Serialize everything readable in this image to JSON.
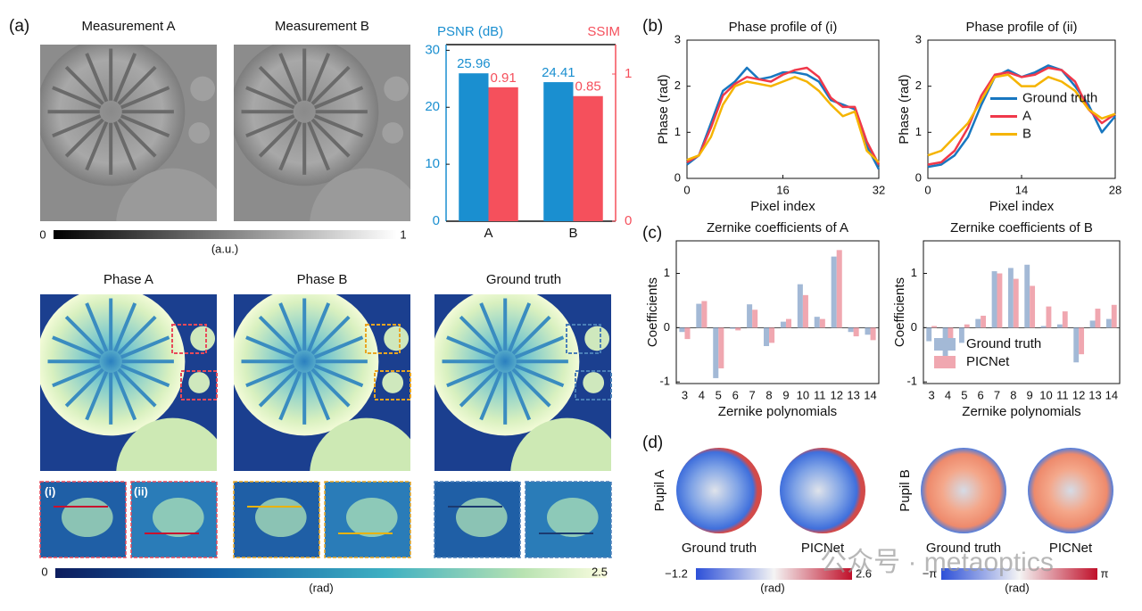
{
  "figure": {
    "panel_labels": [
      "(a)",
      "(b)",
      "(c)",
      "(d)"
    ],
    "measurement_titles": [
      "Measurement A",
      "Measurement B"
    ],
    "gray_colorbar": {
      "min": 0,
      "max": 1,
      "unit": "(a.u.)"
    },
    "phase_titles": [
      "Phase A",
      "Phase B",
      "Ground truth"
    ],
    "inset_labels": [
      "(i)",
      "(ii)"
    ],
    "phase_colorbar": {
      "min": 0,
      "max": 2.5,
      "unit": "(rad)"
    },
    "pupil_labels": [
      "Pupil A",
      "Pupil B"
    ],
    "pupil_titles": [
      "Ground truth",
      "PICNet",
      "Ground truth",
      "PICNet"
    ],
    "pupil_colorbar_a": {
      "min": {
        "value": -1.2,
        "label": "−1.2"
      },
      "max": 2.6,
      "unit": "(rad)"
    },
    "pupil_colorbar_b": {
      "min": "−π",
      "max": "π",
      "unit": "(rad)"
    },
    "watermark": "公众号 · metaoptics"
  },
  "chart_data": [
    {
      "type": "bar",
      "categories": [
        "A",
        "B"
      ],
      "data_labels": true,
      "series": [
        {
          "name": "PSNR (dB)",
          "color": "#1a8fd0",
          "values": [
            25.96,
            24.41
          ]
        },
        {
          "name": "SSIM",
          "color": "#f5505c",
          "axis": "y2",
          "values": [
            0.91,
            0.85
          ]
        }
      ],
      "ylim": [
        0,
        31
      ],
      "yticks": [
        0,
        10,
        20,
        30
      ],
      "y2lim": [
        0,
        1.2
      ],
      "y2ticks": [
        0,
        1
      ]
    },
    {
      "type": "line",
      "title": "Phase profile of (i)",
      "x_label": "Pixel index",
      "y_label": "Phase (rad)",
      "x": [
        0,
        2,
        4,
        6,
        8,
        10,
        12,
        14,
        16,
        18,
        20,
        22,
        24,
        26,
        28,
        30,
        32
      ],
      "xlim": [
        0,
        32
      ],
      "xticks": [
        0,
        16,
        32
      ],
      "ylim": [
        0,
        3
      ],
      "yticks": [
        0,
        1,
        2,
        3
      ],
      "series": [
        {
          "name": "Ground truth",
          "color": "#1877c0",
          "values": [
            0.3,
            0.5,
            1.2,
            1.9,
            2.1,
            2.4,
            2.15,
            2.2,
            2.3,
            2.3,
            2.25,
            2.1,
            1.7,
            1.6,
            1.5,
            0.7,
            0.2
          ]
        },
        {
          "name": "A",
          "color": "#f0384a",
          "values": [
            0.35,
            0.5,
            1.1,
            1.8,
            2.05,
            2.2,
            2.15,
            2.1,
            2.25,
            2.35,
            2.4,
            2.2,
            1.75,
            1.55,
            1.55,
            0.8,
            0.3
          ]
        },
        {
          "name": "B",
          "color": "#f5b400",
          "values": [
            0.4,
            0.5,
            0.9,
            1.6,
            2.0,
            2.1,
            2.05,
            2.0,
            2.1,
            2.2,
            2.1,
            1.9,
            1.6,
            1.35,
            1.45,
            0.6,
            0.35
          ]
        }
      ]
    },
    {
      "type": "line",
      "title": "Phase profile of (ii)",
      "x_label": "Pixel index",
      "y_label": "Phase (rad)",
      "x": [
        0,
        2,
        4,
        6,
        8,
        10,
        12,
        14,
        16,
        18,
        20,
        22,
        24,
        26,
        28
      ],
      "xlim": [
        0,
        28
      ],
      "xticks": [
        0,
        14,
        28
      ],
      "ylim": [
        0,
        3
      ],
      "yticks": [
        0,
        1,
        2,
        3
      ],
      "legend": "center right",
      "series": [
        {
          "name": "Ground truth",
          "color": "#1877c0",
          "values": [
            0.25,
            0.3,
            0.5,
            0.9,
            1.6,
            2.2,
            2.35,
            2.2,
            2.3,
            2.45,
            2.35,
            2.0,
            1.6,
            1.0,
            1.35
          ]
        },
        {
          "name": "A",
          "color": "#f0384a",
          "values": [
            0.3,
            0.35,
            0.6,
            1.1,
            1.8,
            2.25,
            2.3,
            2.2,
            2.25,
            2.4,
            2.35,
            2.1,
            1.5,
            1.2,
            1.4
          ]
        },
        {
          "name": "B",
          "color": "#f5b400",
          "values": [
            0.5,
            0.6,
            0.9,
            1.2,
            1.7,
            2.2,
            2.25,
            2.0,
            2.0,
            2.2,
            2.1,
            1.9,
            1.5,
            1.3,
            1.4
          ]
        }
      ]
    },
    {
      "type": "bar",
      "title": "Zernike coefficients of A",
      "x_label": "Zernike polynomials",
      "y_label": "Coefficients",
      "categories": [
        "3",
        "4",
        "5",
        "6",
        "7",
        "8",
        "9",
        "10",
        "11",
        "12",
        "13",
        "14"
      ],
      "ylim": [
        -1.03,
        1.6
      ],
      "yticks": [
        -1,
        0,
        1
      ],
      "series": [
        {
          "name": "Ground truth",
          "color": "#a3b9d6",
          "values": [
            -0.08,
            0.44,
            -0.93,
            -0.02,
            0.43,
            -0.34,
            0.11,
            0.8,
            0.2,
            1.31,
            -0.08,
            -0.13
          ]
        },
        {
          "name": "PICNet",
          "color": "#f0a7b0",
          "values": [
            -0.21,
            0.49,
            -0.75,
            -0.05,
            0.33,
            -0.28,
            0.16,
            0.6,
            0.16,
            1.43,
            -0.16,
            -0.23
          ]
        }
      ]
    },
    {
      "type": "bar",
      "title": "Zernike coefficients of B",
      "x_label": "Zernike polynomials",
      "y_label": "Coefficients",
      "categories": [
        "3",
        "4",
        "5",
        "6",
        "7",
        "8",
        "9",
        "10",
        "11",
        "12",
        "13",
        "14"
      ],
      "ylim": [
        -1.03,
        1.6
      ],
      "yticks": [
        -1,
        0,
        1
      ],
      "legend": "lower left",
      "series": [
        {
          "name": "Ground truth",
          "color": "#a3b9d6",
          "values": [
            -0.25,
            -0.72,
            -0.28,
            0.16,
            1.04,
            1.1,
            1.16,
            0.03,
            0.06,
            -0.64,
            0.13,
            0.16
          ]
        },
        {
          "name": "PICNet",
          "color": "#f0a7b0",
          "values": [
            0.03,
            -0.4,
            0.06,
            0.22,
            1.0,
            0.9,
            0.77,
            0.39,
            0.3,
            -0.49,
            0.35,
            0.42
          ]
        }
      ]
    }
  ]
}
